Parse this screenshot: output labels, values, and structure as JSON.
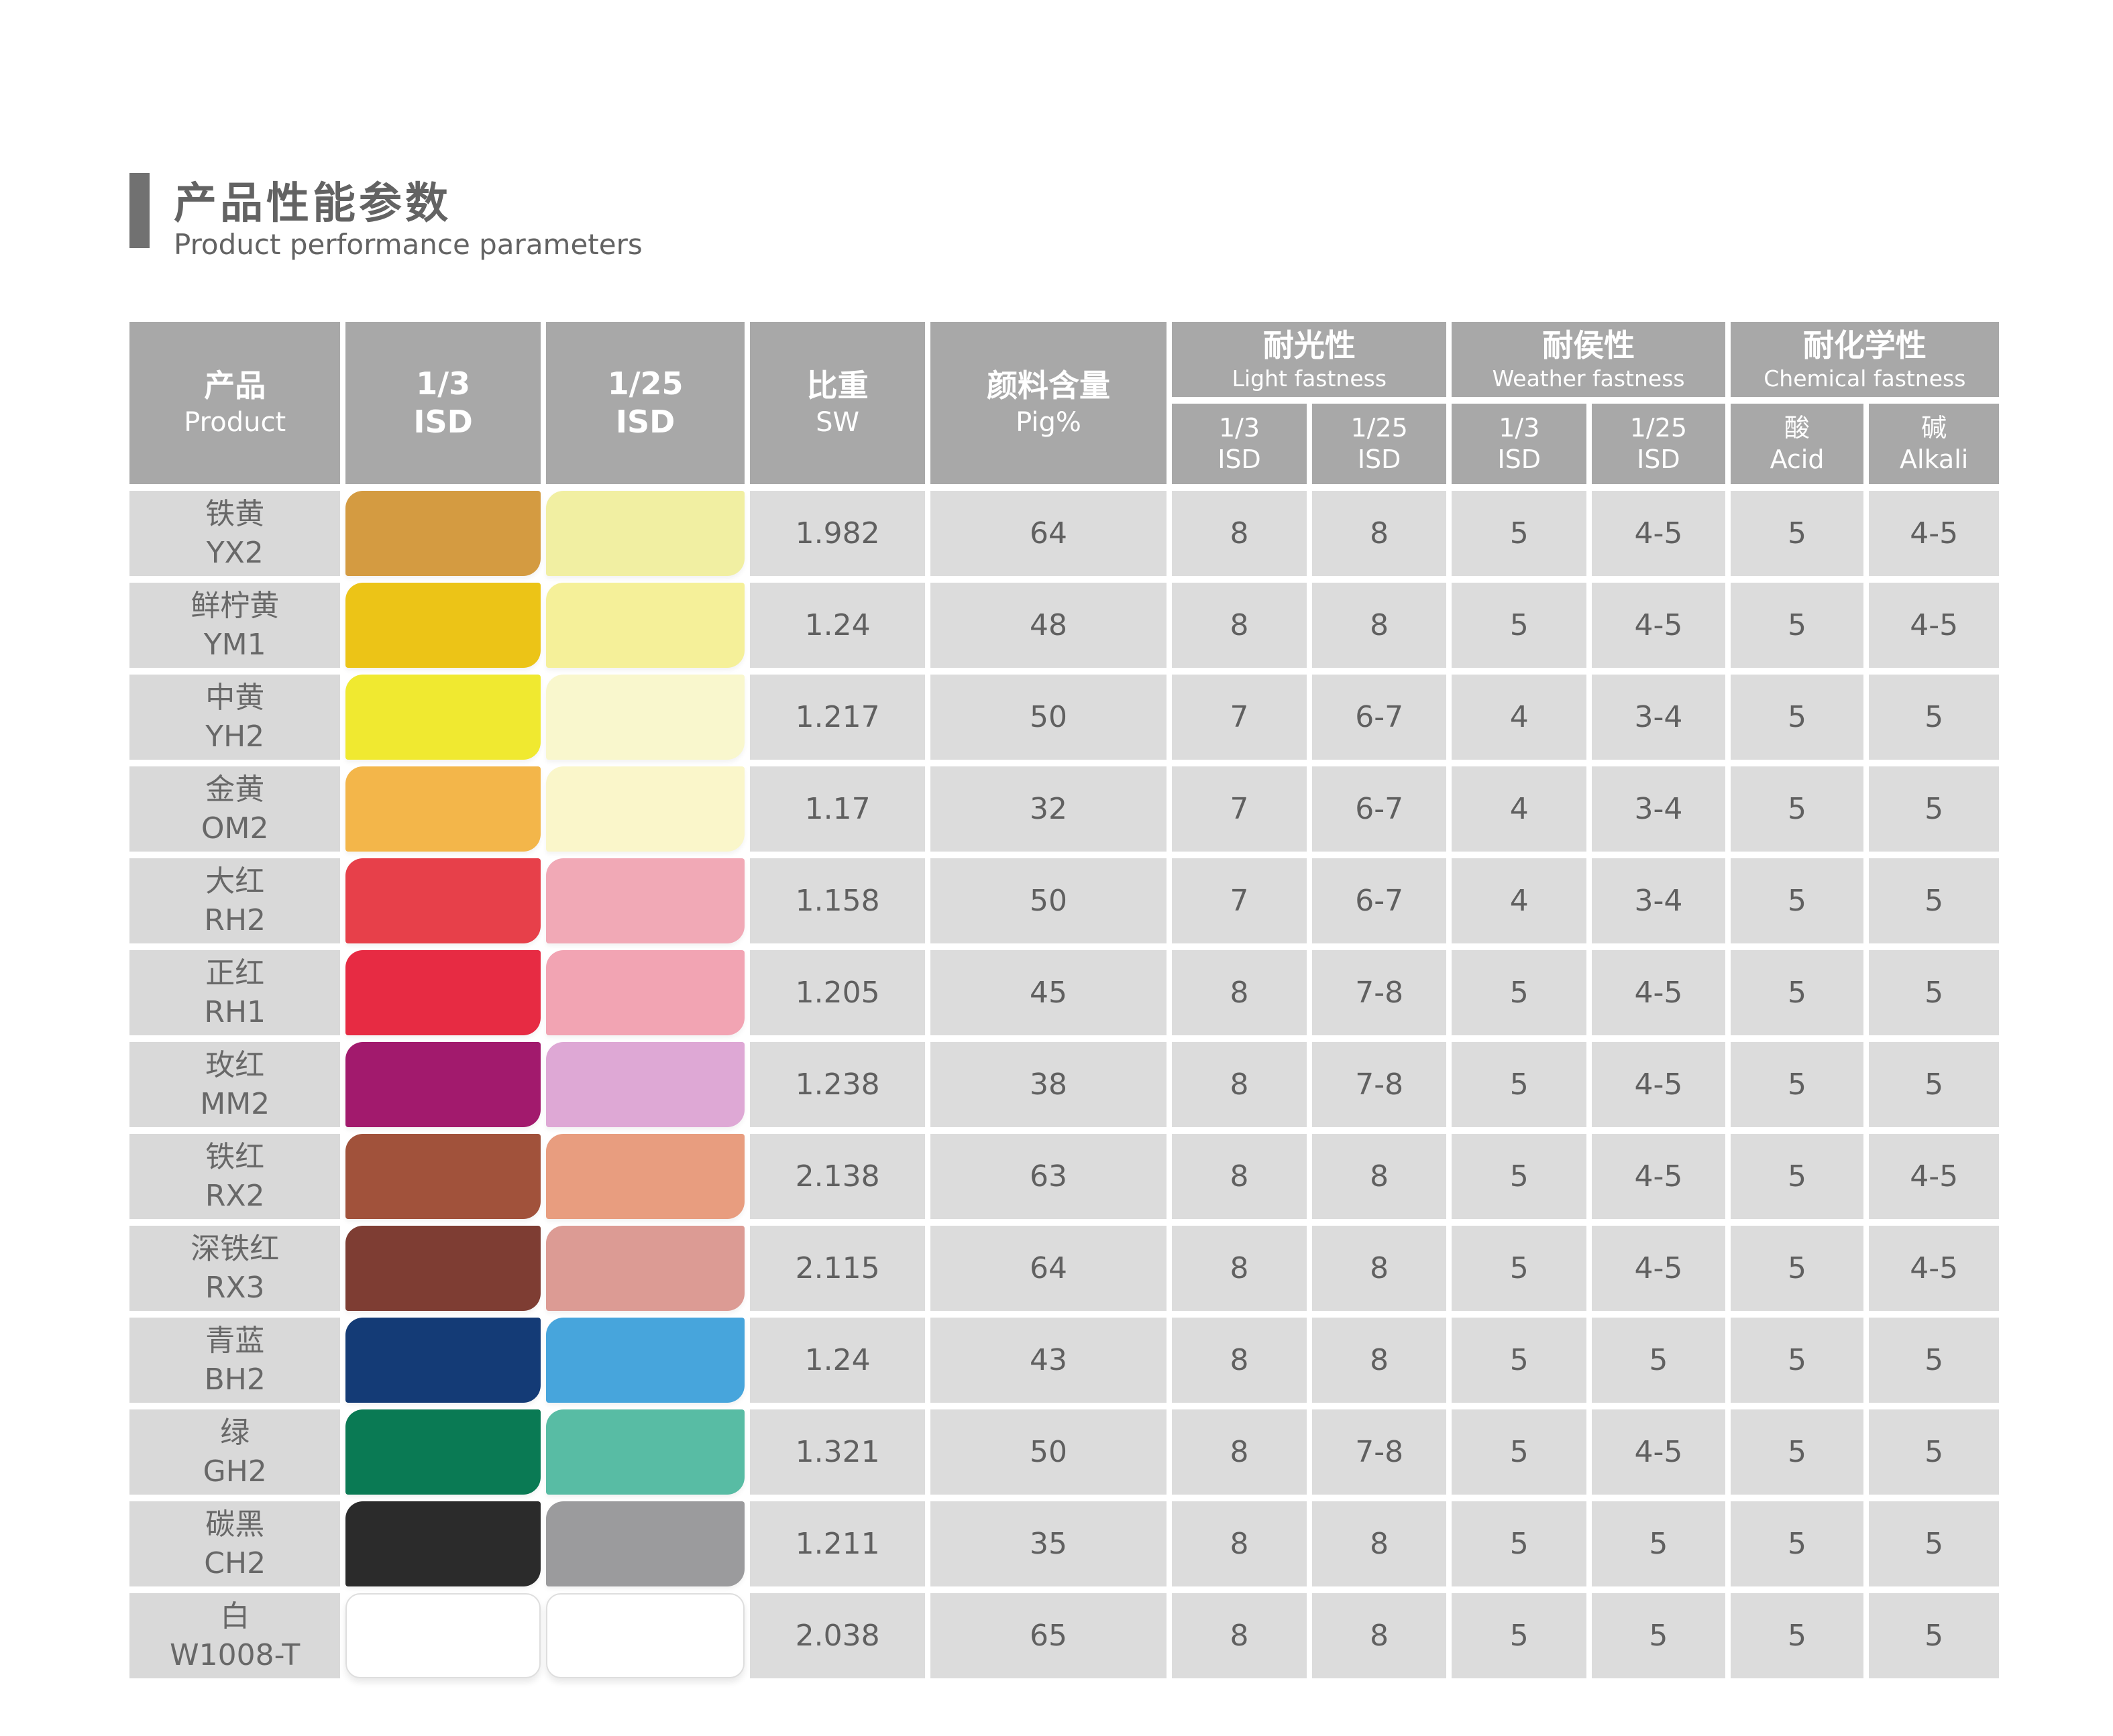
{
  "page": {
    "title_zh": "产品性能参数",
    "title_en": "Product performance parameters"
  },
  "colors": {
    "title_bar": "#717171",
    "header_bg": "#a8a8a8",
    "label_cell_bg": "#d9d9d9",
    "value_cell_bg": "#dcdcdc",
    "text_gray": "#606060"
  },
  "table": {
    "header": {
      "product": {
        "zh": "产品",
        "en": "Product"
      },
      "isd13": {
        "line1": "1/3",
        "line2": "ISD"
      },
      "isd125": {
        "line1": "1/25",
        "line2": "ISD"
      },
      "sw": {
        "zh": "比重",
        "en": "SW"
      },
      "pig": {
        "zh": "颜料含量",
        "en": "Pig%"
      },
      "groups": [
        {
          "zh": "耐光性",
          "en": "Light fastness"
        },
        {
          "zh": "耐侯性",
          "en": "Weather fastness"
        },
        {
          "zh": "耐化学性",
          "en": "Chemical fastness"
        }
      ],
      "subs": [
        {
          "line1": "1/3",
          "line2": "ISD"
        },
        {
          "line1": "1/25",
          "line2": "ISD"
        },
        {
          "line1": "1/3",
          "line2": "ISD"
        },
        {
          "line1": "1/25",
          "line2": "ISD"
        },
        {
          "line1": "酸",
          "line2": "Acid"
        },
        {
          "line1": "碱",
          "line2": "Alkali"
        }
      ]
    },
    "rows": [
      {
        "name_zh": "铁黄",
        "code": "YX2",
        "swatch_1_3": "#d49b41",
        "swatch_1_25": "#f1efa2",
        "white": false,
        "sw": "1.982",
        "pig": "64",
        "light_1_3": "8",
        "light_1_25": "8",
        "weather_1_3": "5",
        "weather_1_25": "4-5",
        "acid": "5",
        "alkali": "4-5"
      },
      {
        "name_zh": "鲜柠黄",
        "code": "YM1",
        "swatch_1_3": "#ecc417",
        "swatch_1_25": "#f5f099",
        "white": false,
        "sw": "1.24",
        "pig": "48",
        "light_1_3": "8",
        "light_1_25": "8",
        "weather_1_3": "5",
        "weather_1_25": "4-5",
        "acid": "5",
        "alkali": "4-5"
      },
      {
        "name_zh": "中黄",
        "code": "YH2",
        "swatch_1_3": "#f0e930",
        "swatch_1_25": "#f9f7cd",
        "white": false,
        "sw": "1.217",
        "pig": "50",
        "light_1_3": "7",
        "light_1_25": "6-7",
        "weather_1_3": "4",
        "weather_1_25": "3-4",
        "acid": "5",
        "alkali": "5"
      },
      {
        "name_zh": "金黄",
        "code": "OM2",
        "swatch_1_3": "#f3b64a",
        "swatch_1_25": "#faf6ca",
        "white": false,
        "sw": "1.17",
        "pig": "32",
        "light_1_3": "7",
        "light_1_25": "6-7",
        "weather_1_3": "4",
        "weather_1_25": "3-4",
        "acid": "5",
        "alkali": "5"
      },
      {
        "name_zh": "大红",
        "code": "RH2",
        "swatch_1_3": "#e7404a",
        "swatch_1_25": "#f1a9b6",
        "white": false,
        "sw": "1.158",
        "pig": "50",
        "light_1_3": "7",
        "light_1_25": "6-7",
        "weather_1_3": "4",
        "weather_1_25": "3-4",
        "acid": "5",
        "alkali": "5"
      },
      {
        "name_zh": "正红",
        "code": "RH1",
        "swatch_1_3": "#e72b43",
        "swatch_1_25": "#f2a4b3",
        "white": false,
        "sw": "1.205",
        "pig": "45",
        "light_1_3": "8",
        "light_1_25": "7-8",
        "weather_1_3": "5",
        "weather_1_25": "4-5",
        "acid": "5",
        "alkali": "5"
      },
      {
        "name_zh": "玫红",
        "code": "MM2",
        "swatch_1_3": "#a21a6d",
        "swatch_1_25": "#dea8d5",
        "white": false,
        "sw": "1.238",
        "pig": "38",
        "light_1_3": "8",
        "light_1_25": "7-8",
        "weather_1_3": "5",
        "weather_1_25": "4-5",
        "acid": "5",
        "alkali": "5"
      },
      {
        "name_zh": "铁红",
        "code": "RX2",
        "swatch_1_3": "#a1523b",
        "swatch_1_25": "#e89d7f",
        "white": false,
        "sw": "2.138",
        "pig": "63",
        "light_1_3": "8",
        "light_1_25": "8",
        "weather_1_3": "5",
        "weather_1_25": "4-5",
        "acid": "5",
        "alkali": "4-5"
      },
      {
        "name_zh": "深铁红",
        "code": "RX3",
        "swatch_1_3": "#7e3d33",
        "swatch_1_25": "#dc9b94",
        "white": false,
        "sw": "2.115",
        "pig": "64",
        "light_1_3": "8",
        "light_1_25": "8",
        "weather_1_3": "5",
        "weather_1_25": "4-5",
        "acid": "5",
        "alkali": "4-5"
      },
      {
        "name_zh": "青蓝",
        "code": "BH2",
        "swatch_1_3": "#143b76",
        "swatch_1_25": "#47a5dc",
        "white": false,
        "sw": "1.24",
        "pig": "43",
        "light_1_3": "8",
        "light_1_25": "8",
        "weather_1_3": "5",
        "weather_1_25": "5",
        "acid": "5",
        "alkali": "5"
      },
      {
        "name_zh": "绿",
        "code": "GH2",
        "swatch_1_3": "#0a7a54",
        "swatch_1_25": "#58bca4",
        "white": false,
        "sw": "1.321",
        "pig": "50",
        "light_1_3": "8",
        "light_1_25": "7-8",
        "weather_1_3": "5",
        "weather_1_25": "4-5",
        "acid": "5",
        "alkali": "5"
      },
      {
        "name_zh": "碳黑",
        "code": "CH2",
        "swatch_1_3": "#2b2b2b",
        "swatch_1_25": "#9b9b9d",
        "white": false,
        "sw": "1.211",
        "pig": "35",
        "light_1_3": "8",
        "light_1_25": "8",
        "weather_1_3": "5",
        "weather_1_25": "5",
        "acid": "5",
        "alkali": "5"
      },
      {
        "name_zh": "白",
        "code": "W1008-T",
        "swatch_1_3": "#ffffff",
        "swatch_1_25": "#ffffff",
        "white": true,
        "sw": "2.038",
        "pig": "65",
        "light_1_3": "8",
        "light_1_25": "8",
        "weather_1_3": "5",
        "weather_1_25": "5",
        "acid": "5",
        "alkali": "5"
      }
    ]
  }
}
